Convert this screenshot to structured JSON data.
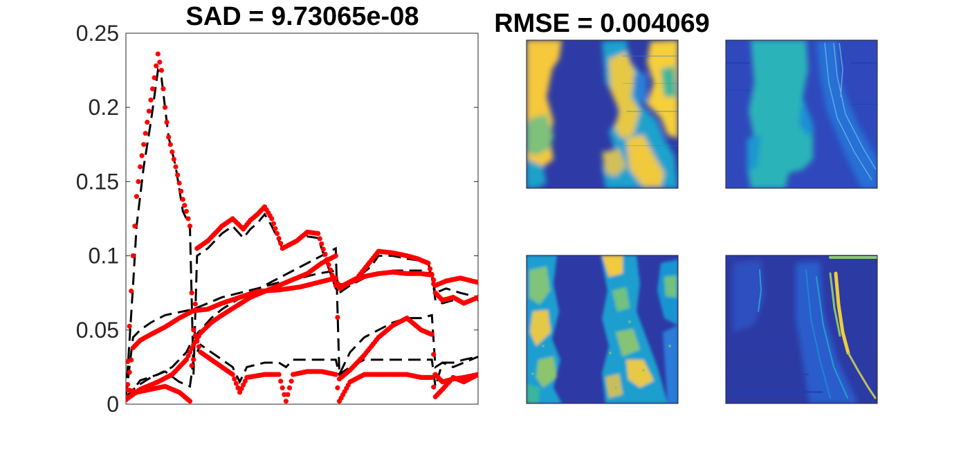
{
  "chart_data": [
    {
      "type": "line",
      "title": "SAD = 9.73065e-08",
      "xlabel": "",
      "ylabel": "",
      "xlim": [
        1,
        100
      ],
      "ylim": [
        0,
        0.25
      ],
      "yticks": [
        0,
        0.05,
        0.1,
        0.15,
        0.2,
        0.25
      ],
      "ytick_labels": [
        "0",
        "0.05",
        "0.1",
        "0.15",
        "0.2",
        "0.25"
      ],
      "xticks_visible": false,
      "grid": false,
      "legend": "none",
      "estimated_style": {
        "color": "#ff0000",
        "marker": "dot"
      },
      "true_style": {
        "color": "#000000",
        "line": "dashed"
      },
      "series": [
        {
          "estimated": [
            [
              1,
              0.005
            ],
            [
              3,
              0.1
            ],
            [
              4,
              0.14
            ],
            [
              5,
              0.16
            ],
            [
              7,
              0.19
            ],
            [
              9,
              0.22
            ],
            [
              10,
              0.236
            ],
            [
              11,
              0.225
            ],
            [
              12,
              0.2
            ],
            [
              13,
              0.18
            ],
            [
              15,
              0.16
            ],
            [
              17,
              0.138
            ],
            [
              18,
              0.13
            ],
            [
              19,
              0.12
            ],
            [
              20,
              0.03
            ],
            [
              21,
              0.105
            ],
            [
              24,
              0.11
            ],
            [
              28,
              0.12
            ],
            [
              31,
              0.125
            ],
            [
              34,
              0.118
            ],
            [
              36,
              0.124
            ],
            [
              38,
              0.128
            ],
            [
              40,
              0.133
            ],
            [
              42,
              0.125
            ],
            [
              45,
              0.105
            ],
            [
              49,
              0.11
            ],
            [
              52,
              0.116
            ],
            [
              55,
              0.115
            ],
            [
              60,
              0.08
            ],
            [
              62,
              0.08
            ],
            [
              66,
              0.085
            ],
            [
              70,
              0.097
            ],
            [
              72,
              0.103
            ],
            [
              76,
              0.102
            ],
            [
              80,
              0.1
            ],
            [
              83,
              0.098
            ],
            [
              86,
              0.095
            ],
            [
              88,
              0.08
            ],
            [
              91,
              0.083
            ],
            [
              95,
              0.085
            ],
            [
              100,
              0.082
            ]
          ],
          "true": [
            [
              1,
              0.005
            ],
            [
              3,
              0.08
            ],
            [
              4,
              0.12
            ],
            [
              6,
              0.16
            ],
            [
              8,
              0.19
            ],
            [
              10,
              0.225
            ],
            [
              11,
              0.22
            ],
            [
              13,
              0.18
            ],
            [
              15,
              0.16
            ],
            [
              17,
              0.13
            ],
            [
              19,
              0.12
            ],
            [
              20,
              0.02
            ],
            [
              21,
              0.1
            ],
            [
              24,
              0.105
            ],
            [
              28,
              0.115
            ],
            [
              31,
              0.12
            ],
            [
              34,
              0.112
            ],
            [
              36,
              0.118
            ],
            [
              38,
              0.122
            ],
            [
              40,
              0.128
            ],
            [
              42,
              0.12
            ],
            [
              45,
              0.105
            ],
            [
              49,
              0.11
            ],
            [
              52,
              0.113
            ],
            [
              55,
              0.112
            ],
            [
              60,
              0.078
            ],
            [
              62,
              0.078
            ],
            [
              66,
              0.085
            ],
            [
              70,
              0.093
            ],
            [
              72,
              0.1
            ],
            [
              76,
              0.1
            ],
            [
              80,
              0.098
            ],
            [
              83,
              0.097
            ],
            [
              86,
              0.095
            ],
            [
              88,
              0.075
            ],
            [
              91,
              0.078
            ],
            [
              95,
              0.075
            ],
            [
              100,
              0.072
            ]
          ]
        },
        {
          "estimated": [
            [
              1,
              0.005
            ],
            [
              3,
              0.038
            ],
            [
              5,
              0.043
            ],
            [
              8,
              0.047
            ],
            [
              12,
              0.052
            ],
            [
              16,
              0.058
            ],
            [
              20,
              0.063
            ],
            [
              24,
              0.064
            ],
            [
              28,
              0.068
            ],
            [
              33,
              0.072
            ],
            [
              38,
              0.076
            ],
            [
              44,
              0.077
            ],
            [
              50,
              0.079
            ],
            [
              55,
              0.082
            ],
            [
              60,
              0.085
            ],
            [
              61,
              0.078
            ],
            [
              64,
              0.082
            ],
            [
              68,
              0.086
            ],
            [
              72,
              0.088
            ],
            [
              76,
              0.089
            ],
            [
              80,
              0.088
            ],
            [
              84,
              0.088
            ],
            [
              87,
              0.087
            ],
            [
              88,
              0.075
            ],
            [
              90,
              0.07
            ],
            [
              93,
              0.072
            ],
            [
              96,
              0.068
            ],
            [
              100,
              0.072
            ]
          ],
          "true": [
            [
              1,
              0.005
            ],
            [
              3,
              0.045
            ],
            [
              5,
              0.05
            ],
            [
              8,
              0.055
            ],
            [
              12,
              0.06
            ],
            [
              16,
              0.062
            ],
            [
              20,
              0.064
            ],
            [
              24,
              0.068
            ],
            [
              28,
              0.072
            ],
            [
              33,
              0.075
            ],
            [
              38,
              0.078
            ],
            [
              44,
              0.082
            ],
            [
              50,
              0.085
            ],
            [
              55,
              0.088
            ],
            [
              60,
              0.09
            ],
            [
              61,
              0.075
            ],
            [
              64,
              0.08
            ],
            [
              68,
              0.085
            ],
            [
              72,
              0.088
            ],
            [
              76,
              0.09
            ],
            [
              80,
              0.09
            ],
            [
              84,
              0.09
            ],
            [
              87,
              0.088
            ],
            [
              88,
              0.07
            ],
            [
              90,
              0.068
            ],
            [
              93,
              0.07
            ],
            [
              96,
              0.068
            ],
            [
              100,
              0.07
            ]
          ]
        },
        {
          "estimated": [
            [
              1,
              0.003
            ],
            [
              5,
              0.01
            ],
            [
              10,
              0.015
            ],
            [
              14,
              0.02
            ],
            [
              18,
              0.03
            ],
            [
              20,
              0.04
            ],
            [
              22,
              0.048
            ],
            [
              25,
              0.055
            ],
            [
              28,
              0.06
            ],
            [
              32,
              0.066
            ],
            [
              36,
              0.072
            ],
            [
              40,
              0.076
            ],
            [
              44,
              0.08
            ],
            [
              48,
              0.084
            ],
            [
              52,
              0.088
            ],
            [
              56,
              0.095
            ],
            [
              60,
              0.1
            ],
            [
              61,
              0.017
            ],
            [
              64,
              0.023
            ],
            [
              68,
              0.033
            ],
            [
              72,
              0.045
            ],
            [
              76,
              0.053
            ],
            [
              80,
              0.058
            ],
            [
              84,
              0.05
            ],
            [
              87,
              0.047
            ],
            [
              88,
              0.02
            ],
            [
              90,
              0.015
            ],
            [
              93,
              0.017
            ],
            [
              96,
              0.018
            ],
            [
              100,
              0.02
            ]
          ],
          "true": [
            [
              1,
              0.003
            ],
            [
              5,
              0.016
            ],
            [
              10,
              0.02
            ],
            [
              14,
              0.025
            ],
            [
              18,
              0.035
            ],
            [
              20,
              0.045
            ],
            [
              22,
              0.05
            ],
            [
              25,
              0.058
            ],
            [
              28,
              0.064
            ],
            [
              32,
              0.07
            ],
            [
              36,
              0.075
            ],
            [
              40,
              0.08
            ],
            [
              44,
              0.085
            ],
            [
              48,
              0.09
            ],
            [
              52,
              0.095
            ],
            [
              56,
              0.1
            ],
            [
              60,
              0.105
            ],
            [
              61,
              0.02
            ],
            [
              64,
              0.035
            ],
            [
              68,
              0.045
            ],
            [
              72,
              0.05
            ],
            [
              76,
              0.055
            ],
            [
              80,
              0.058
            ],
            [
              84,
              0.058
            ],
            [
              87,
              0.06
            ],
            [
              88,
              0.025
            ],
            [
              90,
              0.028
            ],
            [
              93,
              0.025
            ],
            [
              96,
              0.028
            ],
            [
              100,
              0.032
            ]
          ]
        },
        {
          "estimated": [
            [
              1,
              0.01
            ],
            [
              4,
              0.008
            ],
            [
              8,
              0.01
            ],
            [
              12,
              0.012
            ],
            [
              16,
              0.008
            ],
            [
              19,
              0.002
            ],
            [
              20,
              0.05
            ],
            [
              22,
              0.035
            ],
            [
              25,
              0.03
            ],
            [
              28,
              0.025
            ],
            [
              31,
              0.02
            ],
            [
              33,
              0.008
            ],
            [
              35,
              0.018
            ],
            [
              40,
              0.02
            ],
            [
              44,
              0.02
            ],
            [
              46,
              0.002
            ],
            [
              48,
              0.02
            ],
            [
              52,
              0.022
            ],
            [
              56,
              0.022
            ],
            [
              60,
              0.02
            ],
            [
              61,
              0.002
            ],
            [
              64,
              0.015
            ],
            [
              68,
              0.02
            ],
            [
              72,
              0.02
            ],
            [
              76,
              0.02
            ],
            [
              80,
              0.02
            ],
            [
              84,
              0.018
            ],
            [
              87,
              0.018
            ],
            [
              88,
              0.005
            ],
            [
              90,
              0.01
            ],
            [
              93,
              0.018
            ],
            [
              96,
              0.015
            ],
            [
              100,
              0.02
            ]
          ],
          "true": [
            [
              1,
              0.005
            ],
            [
              4,
              0.012
            ],
            [
              8,
              0.018
            ],
            [
              12,
              0.022
            ],
            [
              16,
              0.015
            ],
            [
              19,
              0.012
            ],
            [
              20,
              0.03
            ],
            [
              22,
              0.04
            ],
            [
              25,
              0.035
            ],
            [
              28,
              0.03
            ],
            [
              31,
              0.025
            ],
            [
              33,
              0.015
            ],
            [
              35,
              0.025
            ],
            [
              40,
              0.028
            ],
            [
              44,
              0.028
            ],
            [
              46,
              0.025
            ],
            [
              48,
              0.03
            ],
            [
              52,
              0.03
            ],
            [
              56,
              0.03
            ],
            [
              60,
              0.03
            ],
            [
              61,
              0.02
            ],
            [
              64,
              0.025
            ],
            [
              68,
              0.03
            ],
            [
              72,
              0.03
            ],
            [
              76,
              0.03
            ],
            [
              80,
              0.03
            ],
            [
              84,
              0.03
            ],
            [
              87,
              0.03
            ],
            [
              88,
              0.012
            ],
            [
              90,
              0.028
            ],
            [
              93,
              0.028
            ],
            [
              96,
              0.03
            ],
            [
              100,
              0.032
            ]
          ]
        }
      ]
    },
    {
      "type": "heatmap",
      "title": "RMSE = 0.004069",
      "colormap": "parula",
      "colormap_stops": [
        "#352a87",
        "#0f5cdd",
        "#1481d6",
        "#06a4ca",
        "#2eb7a4",
        "#87bf77",
        "#d1bb59",
        "#fec832",
        "#f9fb0e"
      ],
      "panels": [
        {
          "dominant": "#f9d14a",
          "background": "#2e3ba6",
          "pattern": "bright-left-and-right-bands"
        },
        {
          "dominant": "#2ab7b5",
          "background": "#2e4bbd",
          "pattern": "bright-central-band"
        },
        {
          "dominant": "#7cc47a",
          "background": "#2d3aa6",
          "pattern": "speckled-left-and-right-bands"
        },
        {
          "dominant": "#e6c93a",
          "background": "#2c3aa4",
          "pattern": "thin-diagonal-streaks"
        }
      ]
    }
  ]
}
